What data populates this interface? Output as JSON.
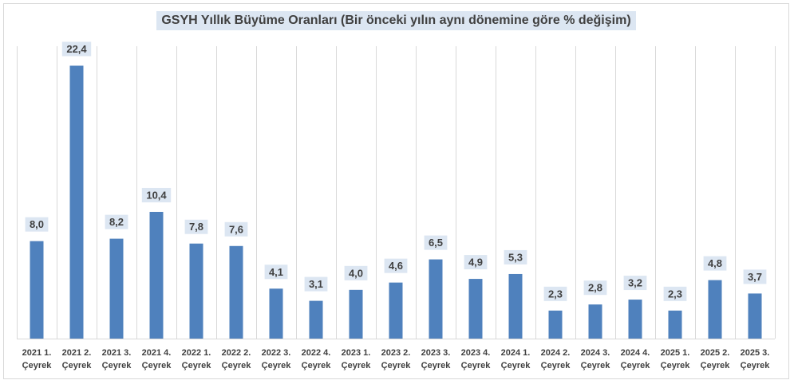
{
  "chart_data": {
    "type": "bar",
    "title": "GSYH Yıllık Büyüme Oranları (Bir önceki yılın aynı dönemine göre % değişim)",
    "categories": [
      [
        "2021 1.",
        "Çeyrek"
      ],
      [
        "2021 2.",
        "Çeyrek"
      ],
      [
        "2021 3.",
        "Çeyrek"
      ],
      [
        "2021 4.",
        "Çeyrek"
      ],
      [
        "2022 1.",
        "Çeyrek"
      ],
      [
        "2022 2.",
        "Çeyrek"
      ],
      [
        "2022 3.",
        "Çeyrek"
      ],
      [
        "2022 4.",
        "Çeyrek"
      ],
      [
        "2023 1.",
        "Çeyrek"
      ],
      [
        "2023 2.",
        "Çeyrek"
      ],
      [
        "2023 3.",
        "Çeyrek"
      ],
      [
        "2023 4.",
        "Çeyrek"
      ],
      [
        "2024 1.",
        "Çeyrek"
      ],
      [
        "2024 2.",
        "Çeyrek"
      ],
      [
        "2024 3.",
        "Çeyrek"
      ],
      [
        "2024 4.",
        "Çeyrek"
      ],
      [
        "2025 1.",
        "Çeyrek"
      ],
      [
        "2025 2.",
        "Çeyrek"
      ],
      [
        "2025 3.",
        "Çeyrek"
      ]
    ],
    "values": [
      8.0,
      22.4,
      8.2,
      10.4,
      7.8,
      7.6,
      4.1,
      3.1,
      4.0,
      4.6,
      6.5,
      4.9,
      5.3,
      2.3,
      2.8,
      3.2,
      2.3,
      4.8,
      3.7
    ],
    "value_labels": [
      "8,0",
      "22,4",
      "8,2",
      "10,4",
      "7,8",
      "7,6",
      "4,1",
      "3,1",
      "4,0",
      "4,6",
      "6,5",
      "4,9",
      "5,3",
      "2,3",
      "2,8",
      "3,2",
      "2,3",
      "4,8",
      "3,7"
    ],
    "ylim": [
      0,
      24
    ],
    "grid": "vertical",
    "legend": "none",
    "colors": {
      "bar": "#4f81bd",
      "label_bg": "#dce6f2",
      "text": "#404040",
      "grid": "#d9d9d9"
    }
  }
}
